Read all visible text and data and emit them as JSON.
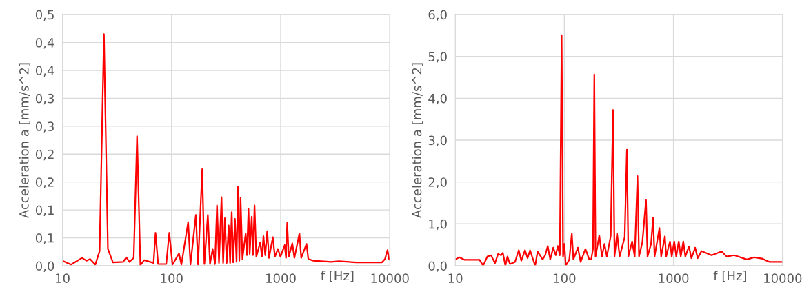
{
  "chart_data": [
    {
      "type": "line",
      "xlabel": "f [Hz]",
      "ylabel": "Acceleration a [mm/s^2]",
      "log": "x",
      "grid": true,
      "legend": false,
      "marker": "none",
      "line_style": "solid",
      "xlim": [
        10,
        10000
      ],
      "xticks": [
        10,
        100,
        1000,
        10000
      ],
      "ylim": [
        0,
        0.45
      ],
      "yticks": [
        {
          "value": 0,
          "label": "0,0"
        },
        {
          "value": 0.05,
          "label": "0,1"
        },
        {
          "value": 0.1,
          "label": "0,1"
        },
        {
          "value": 0.15,
          "label": "0,2"
        },
        {
          "value": 0.2,
          "label": "0,2"
        },
        {
          "value": 0.25,
          "label": "0,3"
        },
        {
          "value": 0.3,
          "label": "0,3"
        },
        {
          "value": 0.35,
          "label": "0,4"
        },
        {
          "value": 0.4,
          "label": "0,4"
        },
        {
          "value": 0.45,
          "label": "0,5"
        }
      ],
      "series": [
        {
          "color": "#ff0000",
          "x": [
            10,
            12.0,
            15.1,
            16.6,
            17.9,
            20.0,
            21.9,
            24.0,
            26.1,
            29.0,
            36.0,
            38.5,
            41.1,
            45.0,
            48.3,
            51.8,
            56.1,
            68.4,
            71.3,
            75.3,
            89.4,
            95.3,
            102,
            117,
            123,
            142,
            149,
            167,
            175,
            191,
            200,
            215,
            225,
            238,
            250,
            261,
            272,
            287,
            297,
            308,
            320,
            334,
            344,
            356,
            367,
            381,
            394,
            406,
            418,
            429,
            446,
            478,
            491,
            507,
            520,
            543,
            558,
            576,
            598,
            649,
            673,
            695,
            722,
            753,
            782,
            847,
            885,
            943,
            995,
            1089,
            1119,
            1148,
            1186,
            1279,
            1336,
            1486,
            1542,
            1726,
            1791,
            1995,
            2904,
            3412,
            4955,
            8472,
            9036,
            9530,
            9840
          ],
          "values": [
            0.009,
            0.002,
            0.014,
            0.009,
            0.012,
            0.002,
            0.026,
            0.415,
            0.03,
            0.006,
            0.007,
            0.015,
            0.007,
            0.014,
            0.232,
            0.001,
            0.01,
            0.005,
            0.059,
            0.003,
            0.003,
            0.059,
            0.002,
            0.022,
            0.002,
            0.078,
            0.002,
            0.091,
            0.002,
            0.173,
            0.003,
            0.091,
            0.003,
            0.03,
            0.003,
            0.108,
            0.005,
            0.123,
            0.005,
            0.085,
            0.005,
            0.072,
            0.005,
            0.096,
            0.006,
            0.084,
            0.007,
            0.141,
            0.009,
            0.122,
            0.012,
            0.058,
            0.019,
            0.102,
            0.021,
            0.088,
            0.019,
            0.108,
            0.016,
            0.042,
            0.016,
            0.053,
            0.019,
            0.062,
            0.014,
            0.051,
            0.016,
            0.03,
            0.016,
            0.037,
            0.014,
            0.077,
            0.016,
            0.04,
            0.014,
            0.058,
            0.014,
            0.039,
            0.012,
            0.009,
            0.007,
            0.008,
            0.006,
            0.006,
            0.012,
            0.028,
            0.012
          ]
        }
      ]
    },
    {
      "type": "line",
      "xlabel": "f [Hz]",
      "ylabel": "Acceleration a [mm/s^2]",
      "log": "x",
      "grid": true,
      "legend": false,
      "marker": "none",
      "line_style": "solid",
      "xlim": [
        10,
        10000
      ],
      "xticks": [
        10,
        100,
        1000,
        10000
      ],
      "ylim": [
        0,
        6
      ],
      "yticks": [
        {
          "value": 0,
          "label": "0,0"
        },
        {
          "value": 1,
          "label": "1,0"
        },
        {
          "value": 2,
          "label": "2,0"
        },
        {
          "value": 3,
          "label": "3,0"
        },
        {
          "value": 4,
          "label": "4,0"
        },
        {
          "value": 5,
          "label": "5,0"
        },
        {
          "value": 6,
          "label": "6,0"
        }
      ],
      "series": [
        {
          "color": "#ff0000",
          "x": [
            10,
            10.9,
            12.2,
            15.1,
            16.7,
            18.0,
            19.7,
            21.3,
            23.1,
            24.7,
            26.3,
            27.3,
            28.8,
            30.1,
            31.7,
            35.3,
            38.2,
            40.3,
            43.6,
            46.0,
            48.5,
            51.2,
            54.0,
            56.9,
            63.2,
            66.7,
            70.4,
            74.2,
            79.1,
            83.4,
            87.1,
            90.9,
            94.4,
            97.3,
            100,
            103,
            111,
            117,
            121,
            133,
            141,
            156,
            169,
            176,
            183,
            188,
            193,
            209,
            221,
            233,
            245,
            266,
            279,
            288,
            304,
            321,
            357,
            374,
            386,
            418,
            441,
            468,
            483,
            518,
            560,
            578,
            623,
            650,
            671,
            743,
            771,
            834,
            857,
            929,
            964,
            1016,
            1060,
            1117,
            1166,
            1230,
            1284,
            1384,
            1459,
            1580,
            1667,
            1804,
            2232,
            2763,
            3068,
            3603,
            4702,
            5510,
            6471,
            7590,
            9890
          ],
          "values": [
            0.15,
            0.2,
            0.14,
            0.14,
            0.14,
            0,
            0.22,
            0.25,
            0.06,
            0.28,
            0.25,
            0.31,
            0,
            0.22,
            0.04,
            0.09,
            0.37,
            0.12,
            0.37,
            0.18,
            0.37,
            0.18,
            0,
            0.34,
            0.15,
            0.25,
            0.47,
            0.15,
            0.43,
            0.25,
            0.47,
            0.25,
            5.51,
            0.22,
            0.52,
            0,
            0.15,
            0.77,
            0.15,
            0.43,
            0.09,
            0.4,
            0.15,
            0.15,
            0.4,
            4.57,
            0.22,
            0.72,
            0.22,
            0.52,
            0.22,
            0.71,
            3.72,
            0.22,
            0.77,
            0.22,
            0.68,
            2.77,
            0.22,
            0.58,
            0.22,
            2.14,
            0.22,
            0.55,
            1.57,
            0.22,
            0.52,
            1.15,
            0.22,
            0.9,
            0.22,
            0.7,
            0.22,
            0.58,
            0.22,
            0.58,
            0.22,
            0.58,
            0.22,
            0.58,
            0.22,
            0.46,
            0.18,
            0.43,
            0.18,
            0.35,
            0.25,
            0.34,
            0.22,
            0.25,
            0.15,
            0.2,
            0.17,
            0.09,
            0.09
          ]
        }
      ]
    }
  ]
}
